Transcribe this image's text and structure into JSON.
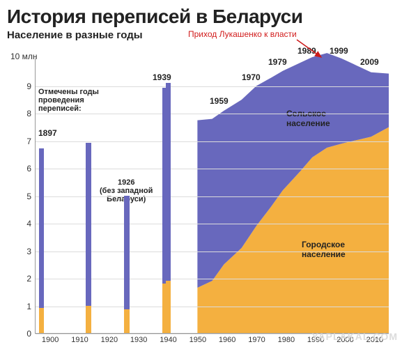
{
  "title": "История переписей в Беларуси",
  "subtitle": "Население в разные годы",
  "annotation_text": "Приход Лукашенко к власти",
  "ylabel_top": "10 млн",
  "watermark": "YAPLAKAL.COM",
  "colors": {
    "rural": "#6868bd",
    "urban": "#f4b040",
    "grid": "#dcdcdc",
    "axis": "#999999",
    "text": "#222222",
    "annotation": "#d11a1a",
    "arrow": "#cc1a1a",
    "background": "#ffffff"
  },
  "chart": {
    "type": "bar+stacked-area",
    "x_domain": [
      1895,
      2015
    ],
    "y_domain": [
      0,
      10
    ],
    "xticks": [
      1900,
      1910,
      1920,
      1930,
      1940,
      1950,
      1960,
      1970,
      1980,
      1990,
      2000,
      2010
    ],
    "yticks": [
      0,
      1,
      2,
      3,
      4,
      5,
      6,
      7,
      8,
      9
    ],
    "bars": [
      {
        "year": 1897,
        "total": 6.7,
        "urban": 0.9
      },
      {
        "year": 1913,
        "total": 6.9,
        "urban": 1.0
      },
      {
        "year": 1926,
        "total": 5.0,
        "urban": 0.85
      },
      {
        "year": 1939,
        "total": 8.9,
        "urban": 1.8
      },
      {
        "year": 1940,
        "total": 9.1,
        "urban": 1.9
      }
    ],
    "bar_width_years": 1.8,
    "area_years": [
      1950,
      1955,
      1959,
      1965,
      1970,
      1975,
      1979,
      1985,
      1989,
      1994,
      1999,
      2005,
      2009,
      2015
    ],
    "area_total": [
      7.75,
      7.8,
      8.1,
      8.5,
      9.0,
      9.3,
      9.55,
      9.85,
      10.05,
      10.2,
      10.0,
      9.7,
      9.5,
      9.45
    ],
    "area_urban": [
      1.65,
      1.9,
      2.5,
      3.1,
      3.9,
      4.6,
      5.2,
      5.9,
      6.4,
      6.75,
      6.9,
      7.05,
      7.15,
      7.5
    ]
  },
  "labels": {
    "legend_note_l1": "Отмечены годы",
    "legend_note_l2": "проведения",
    "legend_note_l3": "переписей:",
    "y1897": "1897",
    "y1926_l1": "1926",
    "y1926_l2": "(без западной",
    "y1926_l3": "Беларуси)",
    "y1939": "1939",
    "y1959": "1959",
    "y1970": "1970",
    "y1979": "1979",
    "y1989": "1989",
    "y1999": "1999",
    "y2009": "2009",
    "rural_label": "Сельское",
    "rural_label2": "население",
    "urban_label": "Городское",
    "urban_label2": "население"
  },
  "fonts": {
    "title_size": 28,
    "subtitle_size": 15,
    "tick_size": 12,
    "label_size": 12
  }
}
